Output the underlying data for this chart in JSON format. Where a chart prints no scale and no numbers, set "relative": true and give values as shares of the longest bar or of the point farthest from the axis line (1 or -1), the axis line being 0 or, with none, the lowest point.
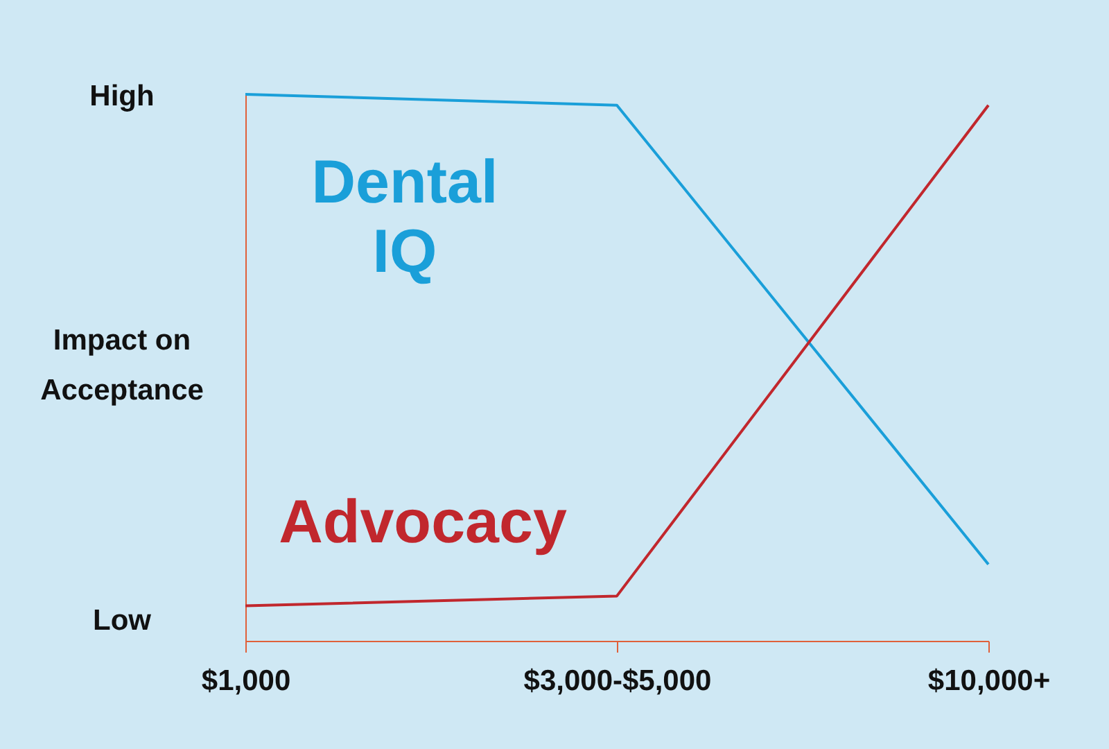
{
  "chart_data": {
    "type": "line",
    "relative": true,
    "ylabel": "Impact on Acceptance",
    "categories": [
      "$1,000",
      "$3,000-$5,000",
      "$10,000+"
    ],
    "series": [
      {
        "name": "Dental IQ",
        "color": "#1a9fd9",
        "values": [
          1,
          0.98,
          0.14
        ]
      },
      {
        "name": "Advocacy",
        "color": "#c1272d",
        "values": [
          0.064,
          0.082,
          0.98
        ]
      }
    ],
    "annotations": [
      "High",
      "Low"
    ],
    "legend": false,
    "grid": false,
    "marker": "none",
    "line_style": "solid"
  }
}
